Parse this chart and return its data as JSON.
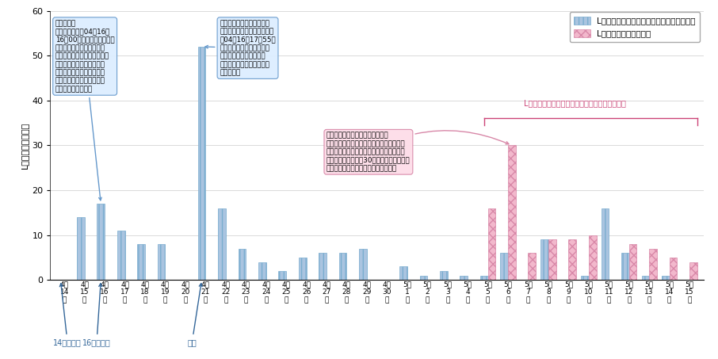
{
  "ylabel": "Lアラート発信件数",
  "ylim": [
    0,
    60
  ],
  "yticks": [
    0,
    10,
    20,
    30,
    40,
    50,
    60
  ],
  "labels": [
    "4月\n14\n日",
    "4月\n15\n日",
    "4月\n16\n日",
    "4月\n17\n日",
    "4月\n18\n日",
    "4月\n19\n日",
    "4月\n20\n日",
    "4月\n21\n日",
    "4月\n22\n日",
    "4月\n23\n日",
    "4月\n24\n日",
    "4月\n25\n日",
    "4月\n26\n日",
    "4月\n27\n日",
    "4月\n28\n日",
    "4月\n29\n日",
    "4月\n30\n日",
    "5月\n1\n日",
    "5月\n2\n日",
    "5月\n3\n日",
    "5月\n4\n日",
    "5月\n5\n日",
    "5月\n6\n日",
    "5月\n7\n日",
    "5月\n8\n日",
    "5月\n9\n日",
    "5月\n10\n日",
    "5月\n11\n日",
    "5月\n12\n日",
    "5月\n13\n日",
    "5月\n14\n日",
    "5月\n15\n日"
  ],
  "blue_values": [
    0,
    14,
    17,
    11,
    8,
    8,
    0,
    52,
    16,
    7,
    4,
    2,
    5,
    6,
    6,
    7,
    0,
    3,
    1,
    2,
    1,
    1,
    6,
    0,
    9,
    0,
    1,
    16,
    6,
    1,
    1,
    0
  ],
  "pink_values": [
    0,
    0,
    0,
    0,
    0,
    0,
    0,
    0,
    0,
    0,
    0,
    0,
    0,
    0,
    0,
    0,
    0,
    0,
    0,
    0,
    0,
    16,
    30,
    6,
    9,
    9,
    10,
    0,
    8,
    7,
    5,
    4
  ],
  "blue_color": "#aac4e0",
  "pink_color": "#f2b8cc",
  "legend_blue": "Lアラート（避難指示（緊急）・避難勧告）",
  "legend_pink": "Lアラート（お知らせ）",
  "ann1_title": "【宇城市】",
  "ann1_body": "避難勧告　発令04月16日\n16時00分（危険地区）［補\n足情報］危険地区　避難所\nは市内１９カ所。市内の土砂\n災害、河川堤防決壊、ため\n池決壊の恐れがある地域に\n避難勧告を発令。ただちに\n避難してください。",
  "ann2_title": "【南阿蛸村】避難指示発令",
  "ann2_body": "［見出し文］　避難指示　発\n令04月16日17時55分\n（中松三区、東下田区、下\n田区、喜多区、長野区、\n黒川区、立野区、新所区、\n赤瀬区、）",
  "ann3_title": "【益城町】相談窓口設置について",
  "ann3_body": "中央公民館のロビーに、今回の地震に関す\nる相談窓口を本日から設置します。相談受\n付時間は、午前９時30分から正午まで、及\nび午後１時から４時３０分までです。",
  "ann_right": "Lアラート（お知らせ）の発信が増加（益城町）",
  "note_14": "14日の地震",
  "note_16": "16日の地震",
  "note_rain": "豪雨"
}
